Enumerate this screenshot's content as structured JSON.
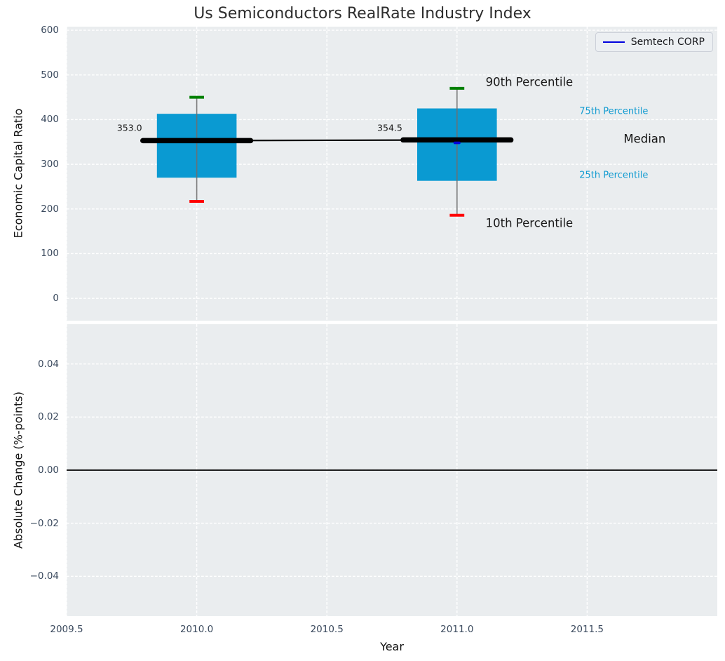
{
  "figure": {
    "title": "Us Semiconductors RealRate Industry Index",
    "xlabel": "Year",
    "legend": {
      "label": "Semtech CORP",
      "line_color": "#0000dd"
    }
  },
  "colors": {
    "plot_bg": "#eaedef",
    "grid": "#ffffff",
    "box_fill": "#0a9ad2",
    "whisker": "#6e6e6e",
    "cap_high": "#008000",
    "cap_low": "#ff0000",
    "median_line": "#000000",
    "zero_line": "#000000",
    "series_blue": "#0000dd",
    "tick_label": "#3b4a5e",
    "annotation_dark": "#1a1a1a",
    "annotation_cyan": "#119bd1"
  },
  "chart_data": [
    {
      "type": "boxplot",
      "title": "Us Semiconductors RealRate Industry Index",
      "ylabel": "Economic Capital Ratio",
      "grid": true,
      "legend_position": "upper right",
      "xlim": [
        2009.5,
        2012.0
      ],
      "ylim": [
        -50,
        608
      ],
      "yticks": [
        600,
        500,
        400,
        300,
        200,
        100,
        0
      ],
      "ytick_labels": [
        "600",
        "500",
        "400",
        "300",
        "200",
        "100",
        "0"
      ],
      "xticks": [
        2009.5,
        2010.0,
        2010.5,
        2011.0,
        2011.5
      ],
      "boxes": [
        {
          "x": 2010.0,
          "whisker_low": 217,
          "q1": 270,
          "median": 353.0,
          "q3": 413,
          "whisker_high": 450,
          "median_label": "353.0"
        },
        {
          "x": 2011.0,
          "whisker_low": 186,
          "q1": 263,
          "median": 354.5,
          "q3": 425,
          "whisker_high": 470,
          "median_label": "354.5"
        }
      ],
      "box_halfwidth_years": 0.153,
      "median_bar_halfwidth_years": 0.207,
      "cap_halfwidth_years": 0.028,
      "median_connector": {
        "x": [
          2010.0,
          2011.0
        ],
        "y": [
          353.0,
          354.5
        ]
      },
      "series": [
        {
          "name": "Semtech CORP",
          "x": [
            2011.0
          ],
          "y": [
            348
          ],
          "color": "#0000dd",
          "marker": "short-dash"
        }
      ],
      "annotations": [
        {
          "text": "353.0",
          "x": 2009.79,
          "y": 382,
          "ha": "right",
          "color": "#1a1a1a",
          "size": 12.5
        },
        {
          "text": "354.5",
          "x": 2010.79,
          "y": 382,
          "ha": "right",
          "color": "#1a1a1a",
          "size": 12.5
        },
        {
          "text": "90th Percentile",
          "x": 2011.11,
          "y": 484,
          "ha": "left",
          "color": "#1a1a1a",
          "size": 16.5
        },
        {
          "text": "75th Percentile",
          "x": 2011.47,
          "y": 418,
          "ha": "left",
          "color": "#119bd1",
          "size": 13
        },
        {
          "text": "Median",
          "x": 2011.64,
          "y": 357,
          "ha": "left",
          "color": "#111111",
          "size": 16.5
        },
        {
          "text": "25th Percentile",
          "x": 2011.47,
          "y": 275,
          "ha": "left",
          "color": "#119bd1",
          "size": 13
        },
        {
          "text": "10th Percentile",
          "x": 2011.11,
          "y": 168,
          "ha": "left",
          "color": "#1a1a1a",
          "size": 16.5
        }
      ]
    },
    {
      "type": "line",
      "ylabel": "Absolute Change (%-points)",
      "xlabel": "Year",
      "grid": true,
      "xlim": [
        2009.5,
        2012.0
      ],
      "ylim": [
        -0.055,
        0.055
      ],
      "yticks": [
        0.04,
        0.02,
        0.0,
        -0.02,
        -0.04
      ],
      "ytick_labels": [
        "0.04",
        "0.02",
        "0.00",
        "−0.02",
        "−0.04"
      ],
      "xticks": [
        2009.5,
        2010.0,
        2010.5,
        2011.0,
        2011.5
      ],
      "xtick_labels": [
        "2009.5",
        "2010.0",
        "2010.5",
        "2011.0",
        "2011.5"
      ],
      "zero_line": 0.0,
      "series": []
    }
  ]
}
